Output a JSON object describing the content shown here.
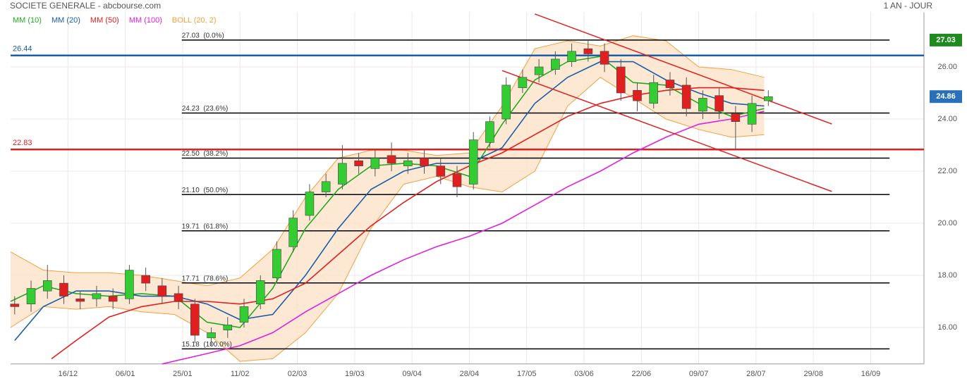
{
  "chart_data": {
    "type": "candlestick",
    "title": "SOCIETE GENERALE - abcbourse.com",
    "period": "1 AN - JOUR",
    "grid": true,
    "xlim": [
      0,
      223
    ],
    "xticks": [
      {
        "value": 14,
        "label": "16/12"
      },
      {
        "value": 28,
        "label": "06/01"
      },
      {
        "value": 42,
        "label": "25/01"
      },
      {
        "value": 56,
        "label": "11/02"
      },
      {
        "value": 70,
        "label": "02/03"
      },
      {
        "value": 84,
        "label": "19/03"
      },
      {
        "value": 98,
        "label": "09/04"
      },
      {
        "value": 112,
        "label": "28/04"
      },
      {
        "value": 126,
        "label": "17/05"
      },
      {
        "value": 140,
        "label": "03/06"
      },
      {
        "value": 154,
        "label": "22/06"
      },
      {
        "value": 168,
        "label": "09/07"
      },
      {
        "value": 182,
        "label": "28/07"
      },
      {
        "value": 196,
        "label": "29/08"
      },
      {
        "value": 210,
        "label": "16/09"
      }
    ],
    "ylim": [
      14.6,
      28.1
    ],
    "yticks": [
      {
        "value": 16,
        "label": "16.00"
      },
      {
        "value": 18,
        "label": "18.00"
      },
      {
        "value": 20,
        "label": "20.00"
      },
      {
        "value": 22,
        "label": "22.00"
      },
      {
        "value": 24,
        "label": "24.00"
      },
      {
        "value": 26,
        "label": "26.00"
      }
    ],
    "candles": {
      "up_color": "#33cc33",
      "down_color": "#e02020",
      "x": [
        1,
        5,
        9,
        13,
        17,
        21,
        25,
        29,
        33,
        37,
        41,
        45,
        49,
        53,
        57,
        61,
        65,
        69,
        73,
        77,
        81,
        85,
        89,
        93,
        97,
        101,
        105,
        109,
        113,
        117,
        121,
        125,
        129,
        133,
        137,
        141,
        145,
        149,
        153,
        157,
        161,
        165,
        169,
        173,
        177,
        181,
        185
      ],
      "open": [
        16.9,
        16.9,
        17.4,
        17.7,
        17.1,
        17.1,
        17.2,
        17.1,
        18.0,
        17.6,
        17.3,
        16.9,
        15.6,
        15.9,
        16.2,
        16.9,
        17.9,
        19.1,
        20.3,
        21.2,
        21.5,
        22.4,
        22.1,
        22.6,
        22.2,
        22.5,
        22.2,
        21.9,
        21.5,
        23.1,
        24.0,
        25.2,
        25.7,
        25.9,
        26.2,
        26.7,
        26.6,
        26.0,
        25.1,
        24.6,
        25.5,
        25.3,
        24.3,
        24.9,
        24.2,
        23.8,
        24.7
      ],
      "high": [
        17.2,
        17.8,
        18.4,
        18.0,
        17.4,
        17.6,
        17.5,
        18.4,
        18.3,
        17.9,
        17.6,
        17.1,
        16.0,
        16.4,
        17.1,
        18.0,
        19.3,
        20.5,
        21.5,
        21.9,
        23.0,
        22.7,
        22.8,
        23.1,
        22.7,
        22.8,
        22.5,
        22.2,
        23.5,
        24.1,
        25.6,
        25.9,
        26.3,
        26.6,
        26.9,
        27.0,
        26.9,
        26.3,
        25.4,
        25.7,
        25.8,
        25.6,
        25.1,
        25.2,
        24.5,
        24.9,
        25.1
      ],
      "low": [
        16.5,
        16.6,
        17.1,
        16.9,
        16.7,
        16.8,
        16.7,
        16.9,
        17.4,
        16.9,
        16.7,
        15.4,
        15.3,
        15.6,
        16.0,
        16.7,
        17.7,
        18.9,
        20.1,
        21.0,
        21.3,
        21.9,
        21.8,
        22.0,
        21.9,
        21.9,
        21.5,
        21.0,
        21.3,
        22.9,
        23.8,
        25.0,
        25.4,
        25.7,
        26.0,
        26.2,
        25.8,
        24.7,
        24.3,
        24.4,
        24.9,
        24.1,
        24.0,
        24.0,
        22.8,
        23.5,
        24.5
      ],
      "close": [
        16.8,
        17.5,
        17.8,
        17.2,
        17.0,
        17.3,
        17.0,
        18.2,
        17.7,
        17.2,
        17.0,
        15.7,
        15.8,
        16.1,
        16.8,
        17.8,
        19.0,
        20.2,
        21.2,
        21.6,
        22.3,
        22.2,
        22.5,
        22.3,
        22.4,
        22.2,
        21.8,
        21.4,
        23.2,
        23.9,
        25.3,
        25.6,
        26.0,
        26.3,
        26.6,
        26.5,
        26.1,
        25.0,
        24.7,
        25.4,
        25.2,
        24.4,
        24.8,
        24.3,
        23.9,
        24.6,
        24.86
      ]
    },
    "series": [
      {
        "name": "MM (10)",
        "color": "#22aa22",
        "x": [
          0,
          8,
          16,
          24,
          32,
          40,
          48,
          56,
          64,
          72,
          80,
          88,
          96,
          104,
          112,
          120,
          128,
          136,
          144,
          152,
          160,
          168,
          176,
          184
        ],
        "values": [
          17.0,
          17.6,
          17.3,
          17.2,
          17.3,
          17.2,
          16.2,
          16.0,
          17.5,
          19.8,
          21.3,
          22.2,
          22.3,
          22.2,
          21.8,
          23.8,
          25.5,
          26.2,
          26.4,
          25.4,
          25.3,
          24.6,
          24.1,
          24.4
        ]
      },
      {
        "name": "MM (20)",
        "color": "#1a5da8",
        "x": [
          1,
          8,
          16,
          24,
          32,
          40,
          48,
          56,
          64,
          72,
          80,
          88,
          96,
          104,
          112,
          120,
          128,
          136,
          144,
          152,
          160,
          168,
          176,
          184
        ],
        "values": [
          15.5,
          16.8,
          17.4,
          17.4,
          17.2,
          17.2,
          16.9,
          16.3,
          16.5,
          18.0,
          19.8,
          21.3,
          22.0,
          22.3,
          22.3,
          22.9,
          24.6,
          25.6,
          26.2,
          26.2,
          25.5,
          25.0,
          24.6,
          24.5
        ]
      },
      {
        "name": "MM (50)",
        "color": "#e02020",
        "x": [
          10,
          16,
          24,
          32,
          40,
          48,
          56,
          64,
          72,
          80,
          88,
          96,
          104,
          112,
          120,
          128,
          136,
          144,
          152,
          160,
          168,
          176,
          184
        ],
        "values": [
          14.8,
          15.5,
          16.4,
          16.8,
          17.0,
          17.0,
          16.9,
          17.1,
          17.7,
          18.8,
          19.9,
          20.8,
          21.6,
          22.2,
          22.7,
          23.4,
          24.1,
          24.6,
          24.9,
          25.1,
          25.2,
          25.2,
          25.1
        ]
      },
      {
        "name": "MM (100)",
        "color": "#e020e0",
        "x": [
          37,
          48,
          56,
          64,
          72,
          80,
          88,
          96,
          104,
          112,
          120,
          128,
          136,
          144,
          152,
          160,
          168,
          176,
          184
        ],
        "values": [
          14.6,
          15.0,
          15.3,
          15.8,
          16.6,
          17.3,
          18.0,
          18.6,
          19.1,
          19.5,
          20.0,
          20.7,
          21.4,
          22.0,
          22.7,
          23.3,
          23.8,
          24.0,
          24.3
        ]
      }
    ],
    "bollinger": {
      "name": "BOLL (20, 2)",
      "color": "#f0a040",
      "fill": "#fde3c8",
      "x": [
        0,
        8,
        16,
        24,
        32,
        40,
        48,
        56,
        64,
        72,
        80,
        88,
        96,
        104,
        112,
        120,
        128,
        136,
        144,
        152,
        160,
        168,
        176,
        184
      ],
      "upper": [
        18.9,
        18.2,
        18.1,
        18.1,
        18.0,
        17.8,
        17.6,
        17.9,
        19.0,
        21.0,
        22.5,
        22.8,
        22.8,
        22.6,
        22.7,
        24.5,
        26.7,
        27.0,
        26.8,
        27.2,
        27.0,
        26.0,
        25.9,
        25.6
      ],
      "lower": [
        16.0,
        16.8,
        16.7,
        16.8,
        16.6,
        16.5,
        15.8,
        14.7,
        14.8,
        15.8,
        17.3,
        19.8,
        21.5,
        21.8,
        21.4,
        21.2,
        22.0,
        24.5,
        25.6,
        24.8,
        24.0,
        23.6,
        23.3,
        23.4
      ]
    },
    "levels": {
      "color": "#000000",
      "x": [
        41.8,
        214.6
      ],
      "items": [
        {
          "value": 27.03,
          "label": "27.03  (0.0%)"
        },
        {
          "value": 24.23,
          "label": "24.23  (23.6%)"
        },
        {
          "value": 22.5,
          "label": "22.50  (38.2%)"
        },
        {
          "value": 21.1,
          "label": "21.10  (50.0%)"
        },
        {
          "value": 19.71,
          "label": "19.71  (61.8%)"
        },
        {
          "value": 17.71,
          "label": "17.71  (78.6%)"
        },
        {
          "value": 15.18,
          "label": "15.18  (100.0%)"
        }
      ]
    },
    "hlines": [
      {
        "value": 26.44,
        "color": "#1a5da8"
      },
      {
        "value": 22.83,
        "color": "#e02020"
      }
    ],
    "trendlines": {
      "color": "#e02020",
      "lines": [
        {
          "x": [
            128,
            200.5
          ],
          "y": [
            28.03,
            23.81
          ]
        },
        {
          "x": [
            120,
            200.5
          ],
          "y": [
            25.86,
            21.22
          ]
        }
      ]
    },
    "price_tags": [
      {
        "value": 27.03,
        "color": "#1f8a1f"
      },
      {
        "value": 24.86,
        "color": "#2a70b8"
      }
    ]
  }
}
